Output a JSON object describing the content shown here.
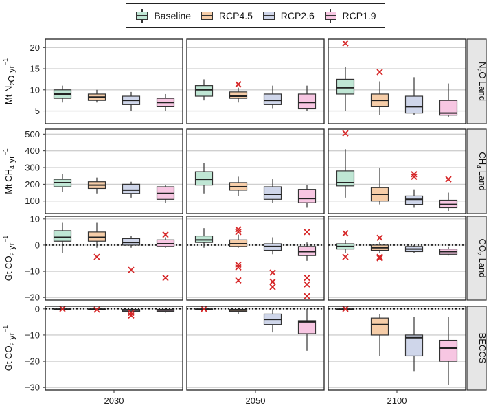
{
  "legend": {
    "items": [
      {
        "label": "Baseline",
        "color": "#bfe6d4"
      },
      {
        "label": "RCP4.5",
        "color": "#f6cda8"
      },
      {
        "label": "RCP2.6",
        "color": "#cfd6ea"
      },
      {
        "label": "RCP1.9",
        "color": "#f7c6e2"
      }
    ]
  },
  "chart_data": {
    "type": "boxplot",
    "columns": [
      "2030",
      "2050",
      "2100"
    ],
    "scenarios": [
      "Baseline",
      "RCP4.5",
      "RCP2.6",
      "RCP1.9"
    ],
    "outlier_color": "#d62728",
    "rows": [
      {
        "strip": "N2O Land",
        "strip_main": "N",
        "strip_sub": "2",
        "strip_tail": "O Land",
        "ylabel": "Mt N2O yr-1",
        "ylabel_parts": [
          {
            "t": "Mt N"
          },
          {
            "t": "2",
            "s": "sub"
          },
          {
            "t": "O yr"
          },
          {
            "t": "−1",
            "s": "sup"
          }
        ],
        "ylim": [
          2,
          22
        ],
        "yticks": [
          5,
          10,
          15,
          20
        ],
        "tick_labels": [
          "5",
          "10",
          "15",
          "20"
        ],
        "zero_line": false,
        "panels": [
          {
            "boxes": [
              {
                "min": 7,
                "q1": 8,
                "median": 9,
                "q3": 10,
                "max": 11,
                "outliers": []
              },
              {
                "min": 7,
                "q1": 7.5,
                "median": 8.3,
                "q3": 9,
                "max": 10,
                "outliers": []
              },
              {
                "min": 5,
                "q1": 6.5,
                "median": 7.5,
                "q3": 8.5,
                "max": 9.5,
                "outliers": []
              },
              {
                "min": 5,
                "q1": 6,
                "median": 7,
                "q3": 8,
                "max": 9,
                "outliers": []
              }
            ]
          },
          {
            "boxes": [
              {
                "min": 7.5,
                "q1": 8.5,
                "median": 10,
                "q3": 11,
                "max": 12.5,
                "outliers": []
              },
              {
                "min": 7,
                "q1": 8,
                "median": 8.5,
                "q3": 9.5,
                "max": 10.5,
                "outliers": [
                  11.3
                ]
              },
              {
                "min": 5.5,
                "q1": 6.5,
                "median": 7.5,
                "q3": 9,
                "max": 11,
                "outliers": []
              },
              {
                "min": 5,
                "q1": 5.5,
                "median": 7,
                "q3": 9,
                "max": 11,
                "outliers": []
              }
            ]
          },
          {
            "boxes": [
              {
                "min": 5,
                "q1": 9,
                "median": 10.5,
                "q3": 12.5,
                "max": 15.5,
                "outliers": [
                  21
                ]
              },
              {
                "min": 4,
                "q1": 6,
                "median": 7.5,
                "q3": 9,
                "max": 12,
                "outliers": [
                  14.2
                ]
              },
              {
                "min": 4,
                "q1": 4.5,
                "median": 6,
                "q3": 8.5,
                "max": 13,
                "outliers": []
              },
              {
                "min": 3.5,
                "q1": 4,
                "median": 4.5,
                "q3": 7.5,
                "max": 11.5,
                "outliers": []
              }
            ]
          }
        ]
      },
      {
        "strip": "CH4 Land",
        "strip_main": "CH",
        "strip_sub": "4",
        "strip_tail": " Land",
        "ylabel": "Mt CH4 yr-1",
        "ylabel_parts": [
          {
            "t": "Mt CH"
          },
          {
            "t": "4",
            "s": "sub"
          },
          {
            "t": " yr"
          },
          {
            "t": "−1",
            "s": "sup"
          }
        ],
        "ylim": [
          25,
          530
        ],
        "yticks": [
          100,
          200,
          300,
          400,
          500
        ],
        "tick_labels": [
          "100",
          "200",
          "300",
          "400",
          "500"
        ],
        "zero_line": false,
        "panels": [
          {
            "boxes": [
              {
                "min": 155,
                "q1": 185,
                "median": 210,
                "q3": 230,
                "max": 260,
                "outliers": []
              },
              {
                "min": 145,
                "q1": 175,
                "median": 195,
                "q3": 215,
                "max": 240,
                "outliers": []
              },
              {
                "min": 120,
                "q1": 145,
                "median": 165,
                "q3": 200,
                "max": 215,
                "outliers": []
              },
              {
                "min": 90,
                "q1": 110,
                "median": 145,
                "q3": 185,
                "max": 195,
                "outliers": []
              }
            ]
          },
          {
            "boxes": [
              {
                "min": 145,
                "q1": 195,
                "median": 230,
                "q3": 275,
                "max": 325,
                "outliers": []
              },
              {
                "min": 130,
                "q1": 165,
                "median": 185,
                "q3": 210,
                "max": 245,
                "outliers": []
              },
              {
                "min": 90,
                "q1": 110,
                "median": 140,
                "q3": 185,
                "max": 230,
                "outliers": []
              },
              {
                "min": 60,
                "q1": 90,
                "median": 115,
                "q3": 170,
                "max": 195,
                "outliers": []
              }
            ]
          },
          {
            "boxes": [
              {
                "min": 120,
                "q1": 190,
                "median": 210,
                "q3": 280,
                "max": 410,
                "outliers": [
                  505
                ]
              },
              {
                "min": 80,
                "q1": 100,
                "median": 140,
                "q3": 180,
                "max": 300,
                "outliers": []
              },
              {
                "min": 60,
                "q1": 80,
                "median": 110,
                "q3": 130,
                "max": 170,
                "outliers": [
                  245,
                  260
                ]
              },
              {
                "min": 40,
                "q1": 60,
                "median": 80,
                "q3": 105,
                "max": 150,
                "outliers": [
                  230
                ]
              }
            ]
          }
        ]
      },
      {
        "strip": "CO2 Land",
        "strip_main": "CO",
        "strip_sub": "2",
        "strip_tail": " Land",
        "ylabel": "Gt CO2 yr-1",
        "ylabel_parts": [
          {
            "t": "Gt CO"
          },
          {
            "t": "2",
            "s": "sub"
          },
          {
            "t": " yr"
          },
          {
            "t": "−1",
            "s": "sup"
          }
        ],
        "ylim": [
          -21,
          11
        ],
        "yticks": [
          -20,
          -10,
          0,
          10
        ],
        "tick_labels": [
          "−20",
          "−10",
          "0",
          "10"
        ],
        "zero_line": true,
        "panels": [
          {
            "boxes": [
              {
                "min": -3,
                "q1": 1.5,
                "median": 3,
                "q3": 5.5,
                "max": 8.5,
                "outliers": []
              },
              {
                "min": -1,
                "q1": 1.5,
                "median": 3,
                "q3": 5,
                "max": 8.5,
                "outliers": [
                  -4.5
                ]
              },
              {
                "min": -1,
                "q1": 0,
                "median": 1,
                "q3": 2.5,
                "max": 3.5,
                "outliers": [
                  -9.5
                ]
              },
              {
                "min": -1,
                "q1": -0.5,
                "median": 0.5,
                "q3": 2,
                "max": 3,
                "outliers": [
                  4,
                  -12.5
                ]
              }
            ]
          },
          {
            "boxes": [
              {
                "min": -1,
                "q1": 1,
                "median": 2,
                "q3": 3.5,
                "max": 6.5,
                "outliers": []
              },
              {
                "min": -1,
                "q1": -0.5,
                "median": 0.5,
                "q3": 2,
                "max": 4,
                "outliers": [
                  6,
                  5,
                  -7.5,
                  -8.5,
                  -13.5
                ]
              },
              {
                "min": -3.5,
                "q1": -2,
                "median": -0.5,
                "q3": 0.5,
                "max": 3,
                "outliers": [
                  -10.5,
                  -14,
                  -16
                ]
              },
              {
                "min": -6,
                "q1": -4,
                "median": -2.5,
                "q3": -0.5,
                "max": 1,
                "outliers": [
                  5,
                  -12.5,
                  -15,
                  -19.5
                ]
              }
            ]
          },
          {
            "boxes": [
              {
                "min": -3,
                "q1": -1.5,
                "median": -0.5,
                "q3": 0.5,
                "max": 2,
                "outliers": [
                  4.5,
                  -4.5
                ]
              },
              {
                "min": -3,
                "q1": -2,
                "median": -1,
                "q3": 0,
                "max": 1,
                "outliers": [
                  2.8,
                  -4.5,
                  -5
                ]
              },
              {
                "min": -3,
                "q1": -2.5,
                "median": -1.5,
                "q3": -0.5,
                "max": 0,
                "outliers": []
              },
              {
                "min": -4,
                "q1": -3.5,
                "median": -2.5,
                "q3": -1.5,
                "max": -0.5,
                "outliers": []
              }
            ]
          }
        ]
      },
      {
        "strip": "BECCS",
        "strip_main": "BECCS",
        "strip_sub": "",
        "strip_tail": "",
        "ylabel": "Gt CO2 yr-1",
        "ylabel_parts": [
          {
            "t": "Gt CO"
          },
          {
            "t": "2",
            "s": "sub"
          },
          {
            "t": " yr"
          },
          {
            "t": "−1",
            "s": "sup"
          }
        ],
        "ylim": [
          -31,
          1
        ],
        "yticks": [
          -30,
          -20,
          -10,
          0
        ],
        "tick_labels": [
          "−30",
          "−20",
          "−10",
          "0"
        ],
        "zero_line": true,
        "panels": [
          {
            "boxes": [
              {
                "min": -0.5,
                "q1": -0.3,
                "median": -0.1,
                "q3": 0,
                "max": 0,
                "outliers": [
                  0
                ]
              },
              {
                "min": -0.5,
                "q1": -0.3,
                "median": -0.1,
                "q3": 0,
                "max": 0,
                "outliers": [
                  -0.3
                ]
              },
              {
                "min": -1.5,
                "q1": -1,
                "median": -0.5,
                "q3": -0.2,
                "max": 0,
                "outliers": [
                  -1.5,
                  -2.5
                ]
              },
              {
                "min": -1.5,
                "q1": -1,
                "median": -0.5,
                "q3": -0.2,
                "max": 0,
                "outliers": []
              }
            ]
          },
          {
            "boxes": [
              {
                "min": -0.5,
                "q1": -0.3,
                "median": -0.1,
                "q3": 0,
                "max": 0,
                "outliers": [
                  0
                ]
              },
              {
                "min": -2,
                "q1": -1,
                "median": -0.5,
                "q3": -0.2,
                "max": 0,
                "outliers": []
              },
              {
                "min": -9,
                "q1": -6,
                "median": -4,
                "q3": -2,
                "max": 0,
                "outliers": []
              },
              {
                "min": -16,
                "q1": -9.5,
                "median": -5,
                "q3": -4.5,
                "max": 0,
                "outliers": []
              }
            ]
          },
          {
            "boxes": [
              {
                "min": -0.5,
                "q1": -0.3,
                "median": -0.1,
                "q3": 0,
                "max": 0,
                "outliers": [
                  0
                ]
              },
              {
                "min": -18,
                "q1": -10,
                "median": -6,
                "q3": -3.5,
                "max": -2,
                "outliers": []
              },
              {
                "min": -24,
                "q1": -18,
                "median": -11,
                "q3": -10,
                "max": -3,
                "outliers": []
              },
              {
                "min": -29,
                "q1": -20,
                "median": -15,
                "q3": -12,
                "max": -3,
                "outliers": []
              }
            ]
          }
        ]
      }
    ]
  }
}
